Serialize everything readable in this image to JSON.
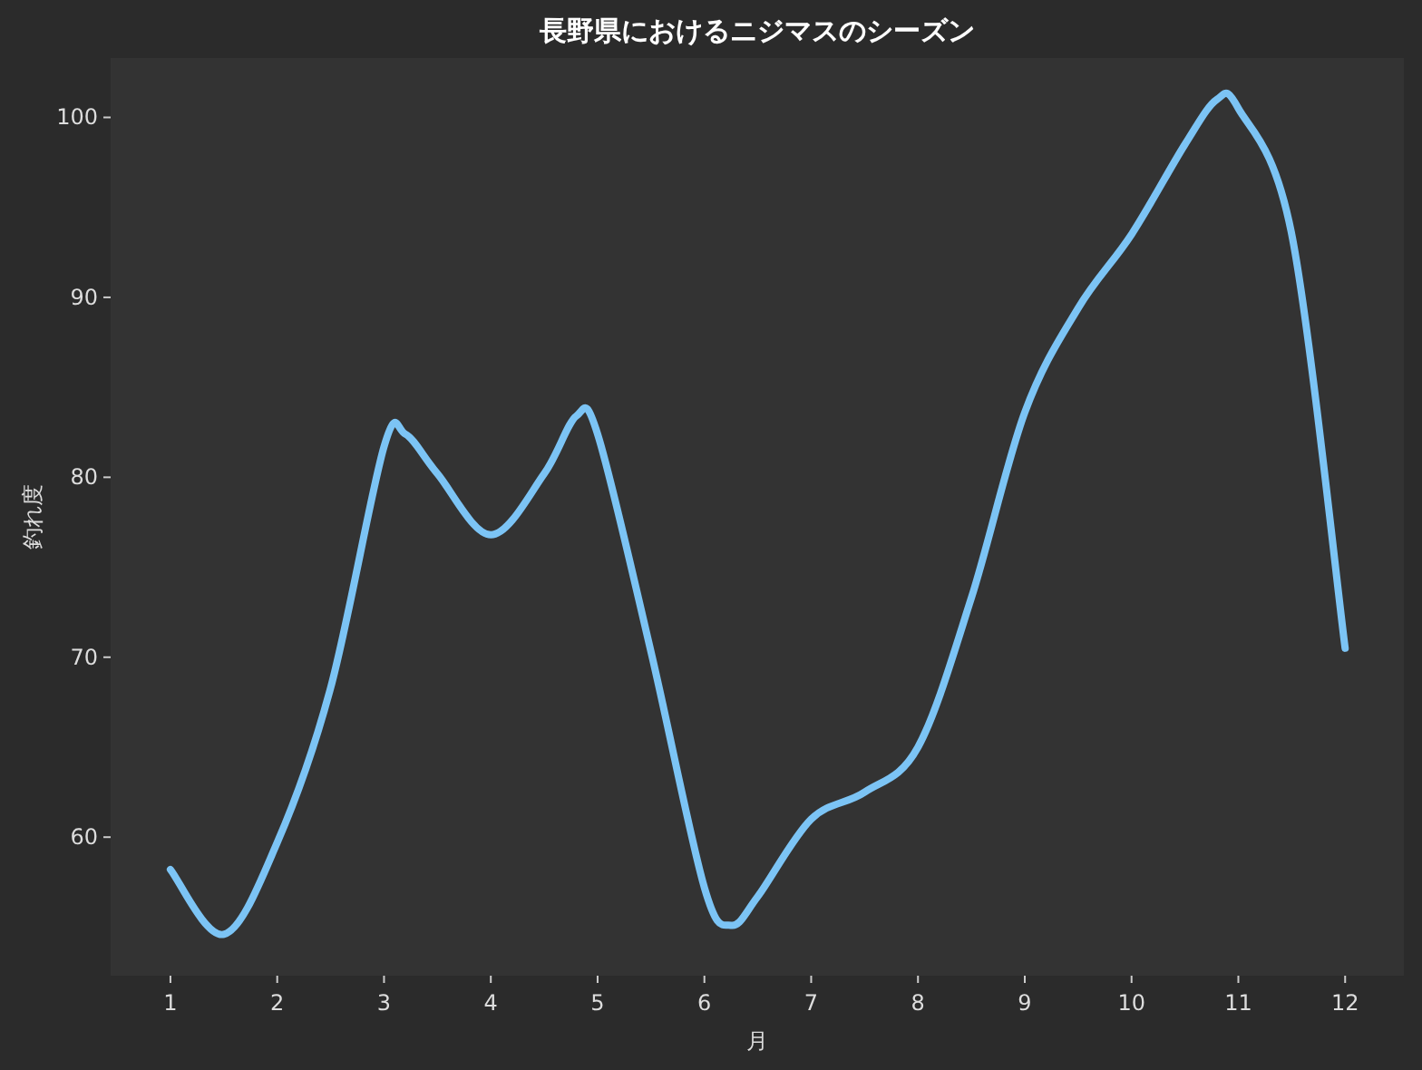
{
  "chart_data": {
    "type": "line",
    "title": "長野県におけるニジマスのシーズン",
    "xlabel": "月",
    "ylabel": "釣れ度",
    "series": [
      {
        "color": "#7cc4f5",
        "x": [
          1,
          1.5,
          2,
          2.5,
          3,
          3.2,
          3.5,
          4,
          4.5,
          4.8,
          5,
          5.5,
          6,
          6.25,
          6.5,
          7,
          7.5,
          8,
          8.5,
          9,
          9.5,
          10,
          10.5,
          10.8,
          11,
          11.5,
          12
        ],
        "values": [
          58.2,
          54.6,
          59.7,
          68.3,
          81.7,
          82.4,
          80.2,
          76.8,
          80.2,
          83.4,
          82.4,
          70.3,
          57.2,
          55.1,
          56.7,
          61.0,
          62.5,
          65.0,
          73.3,
          83.6,
          89.4,
          93.5,
          98.5,
          101.0,
          100.5,
          93.5,
          70.5
        ]
      }
    ],
    "xlim": [
      0.44,
      12.55
    ],
    "ylim": [
      52.3,
      103.3
    ],
    "xticks": [
      1,
      2,
      3,
      4,
      5,
      6,
      7,
      8,
      9,
      10,
      11,
      12
    ],
    "yticks": [
      60,
      70,
      80,
      90,
      100
    ],
    "grid": false,
    "line_style": "solid"
  }
}
